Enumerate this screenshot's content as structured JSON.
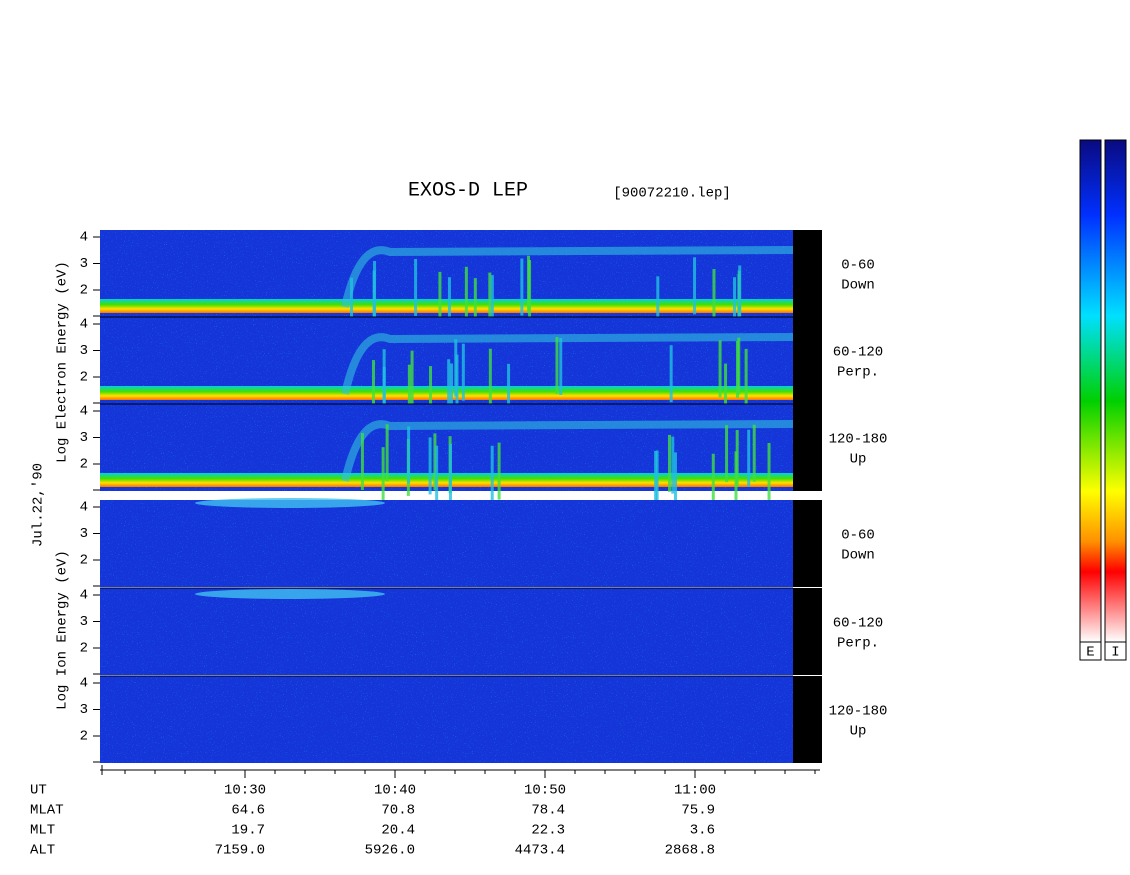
{
  "title": "EXOS-D LEP",
  "file": "[90072210.lep]",
  "electron_axis_label": "Log Electron Energy (eV)",
  "date": "Jul.22,'90",
  "ion_axis_label": "Log Ion Energy (eV)",
  "yticks": [
    4,
    3,
    2
  ],
  "electron_panels": [
    {
      "angle": "0-60",
      "direction": "Down"
    },
    {
      "angle": "60-120",
      "direction": "Perp."
    },
    {
      "angle": "120-180",
      "direction": "Up"
    }
  ],
  "ion_panels": [
    {
      "angle": "0-60",
      "direction": "Down"
    },
    {
      "angle": "60-120",
      "direction": "Perp."
    },
    {
      "angle": "120-180",
      "direction": "Up"
    }
  ],
  "ephemeris": [
    {
      "name": "UT",
      "values": [
        "10:30",
        "10:40",
        "10:50",
        "11:00"
      ]
    },
    {
      "name": "MLAT",
      "values": [
        "64.6",
        "70.8",
        "78.4",
        "75.9"
      ]
    },
    {
      "name": "MLT",
      "values": [
        "19.7",
        "20.4",
        "22.3",
        "3.6"
      ]
    },
    {
      "name": "ALT",
      "values": [
        "7159.0",
        "5926.0",
        "4473.4",
        "2868.8"
      ]
    }
  ],
  "colorbars": [
    "E",
    "I"
  ]
}
